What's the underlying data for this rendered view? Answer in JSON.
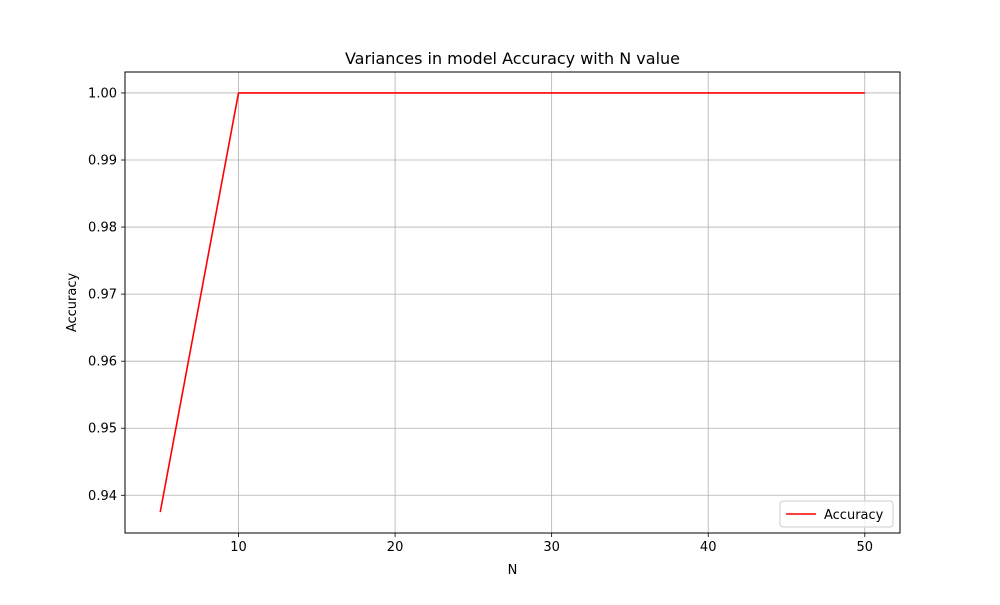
{
  "chart_data": {
    "type": "line",
    "title": "Variances in model Accuracy with N value",
    "xlabel": "N",
    "ylabel": "Accuracy",
    "xlim": [
      2.75,
      52.25
    ],
    "ylim": [
      0.934375,
      1.003125
    ],
    "x_ticks": [
      10,
      20,
      30,
      40,
      50
    ],
    "y_ticks": [
      0.94,
      0.95,
      0.96,
      0.97,
      0.98,
      0.99,
      1.0
    ],
    "x_tick_labels": [
      "10",
      "20",
      "30",
      "40",
      "50"
    ],
    "y_tick_labels": [
      "0.94",
      "0.95",
      "0.96",
      "0.97",
      "0.98",
      "0.99",
      "1.00"
    ],
    "grid": true,
    "legend_position": "lower-right",
    "series": [
      {
        "name": "Accuracy",
        "color": "#ff0000",
        "x": [
          5,
          10,
          15,
          20,
          25,
          30,
          35,
          40,
          45,
          50
        ],
        "y": [
          0.9375,
          1.0,
          1.0,
          1.0,
          1.0,
          1.0,
          1.0,
          1.0,
          1.0,
          1.0
        ]
      }
    ]
  }
}
